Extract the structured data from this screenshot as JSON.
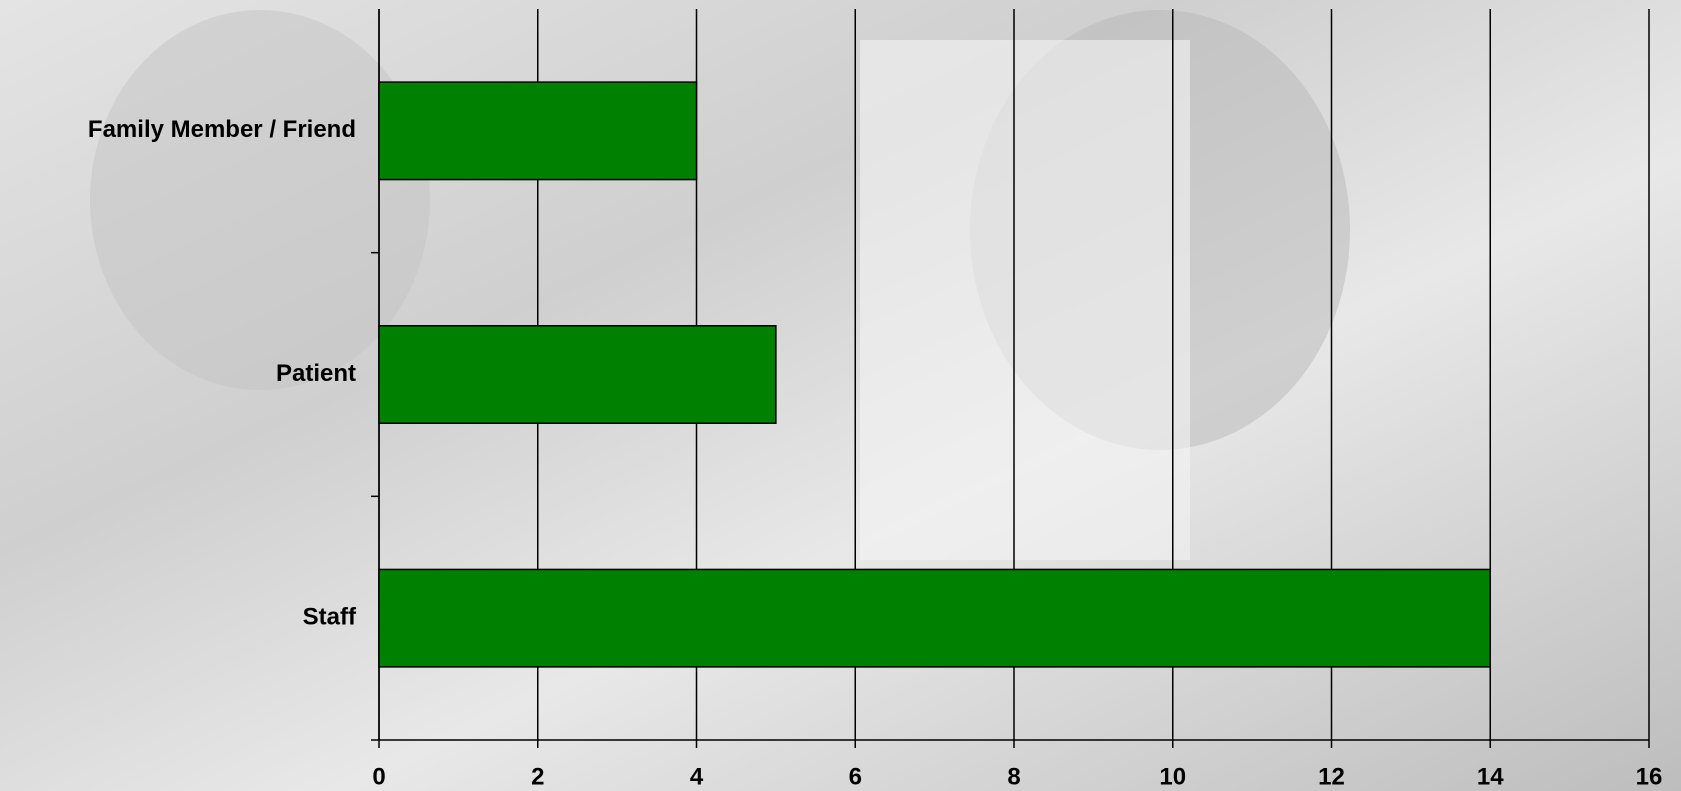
{
  "chart_data": {
    "type": "bar",
    "orientation": "horizontal",
    "categories": [
      "Family Member / Friend",
      "Patient",
      "Staff"
    ],
    "values": [
      4,
      5,
      14
    ],
    "color": "#008000",
    "xlim": [
      0,
      16
    ],
    "xticks": [
      0,
      2,
      4,
      6,
      8,
      10,
      12,
      14,
      16
    ],
    "grid": true
  }
}
